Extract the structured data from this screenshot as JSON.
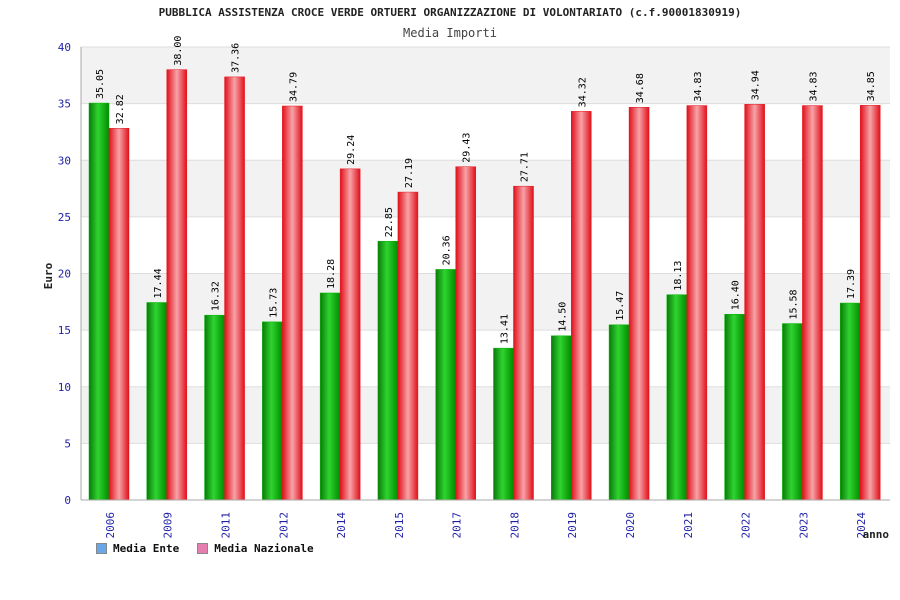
{
  "chart_data": {
    "type": "bar",
    "title": "PUBBLICA ASSISTENZA CROCE VERDE ORTUERI ORGANIZZAZIONE DI VOLONTARIATO (c.f.90001830919)",
    "subtitle": "Media Importi",
    "ylabel": "Euro",
    "xlabel": "anno",
    "ylim": [
      0,
      40
    ],
    "yticks": [
      "0",
      "5",
      "10",
      "15",
      "20",
      "25",
      "30",
      "35",
      "40"
    ],
    "categories": [
      "2006",
      "2009",
      "2011",
      "2012",
      "2014",
      "2015",
      "2017",
      "2018",
      "2019",
      "2020",
      "2021",
      "2022",
      "2023",
      "2024"
    ],
    "series": [
      {
        "name": "Media Ente",
        "color": "#00b400",
        "values": [
          35.05,
          17.44,
          16.32,
          15.73,
          18.28,
          22.85,
          20.36,
          13.41,
          14.5,
          15.47,
          18.13,
          16.4,
          15.58,
          17.39
        ],
        "labels": [
          "35.05",
          "17.44",
          "16.32",
          "15.73",
          "18.28",
          "22.85",
          "20.36",
          "13.41",
          "14.50",
          "15.47",
          "18.13",
          "16.40",
          "15.58",
          "17.39"
        ]
      },
      {
        "name": "Media Nazionale",
        "color": "#e8141e",
        "values": [
          32.82,
          38.0,
          37.36,
          34.79,
          29.24,
          27.19,
          29.43,
          27.71,
          34.32,
          34.68,
          34.83,
          34.94,
          34.83,
          34.85
        ],
        "labels": [
          "32.82",
          "38.00",
          "37.36",
          "34.79",
          "29.24",
          "27.19",
          "29.43",
          "27.71",
          "34.32",
          "34.68",
          "34.83",
          "34.94",
          "34.83",
          "34.85"
        ]
      }
    ],
    "legend_swatch_colors": [
      "#6aa7e8",
      "#e57fb0"
    ],
    "grid": true,
    "legend_position": "bottom-left"
  }
}
